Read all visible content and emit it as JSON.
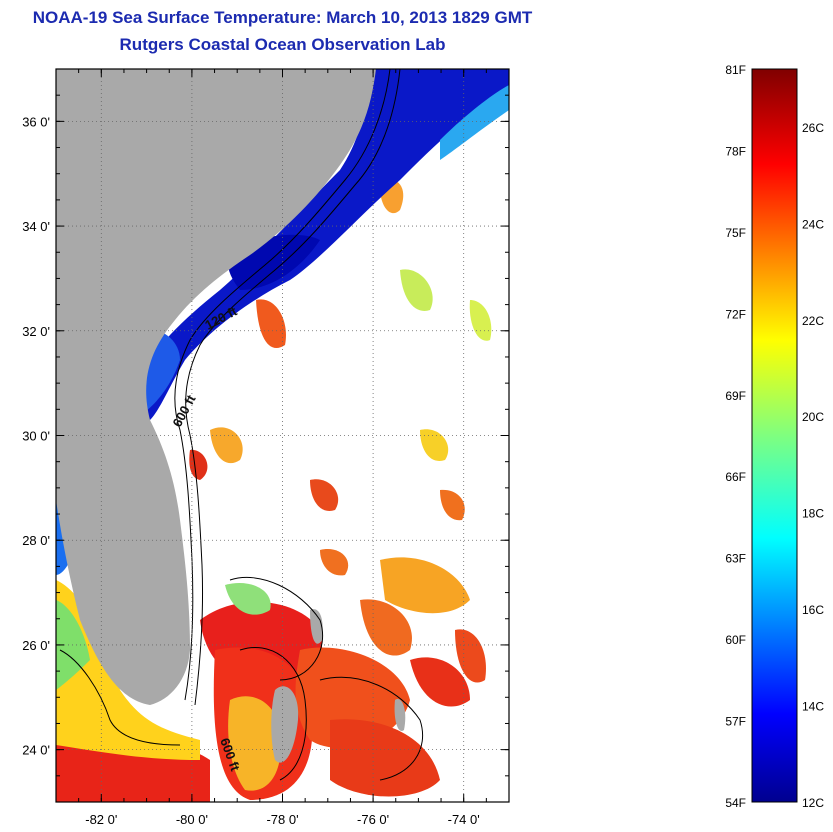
{
  "title_line1": "NOAA-19 Sea Surface Temperature:  March 10, 2013 1829 GMT",
  "title_line2": "Rutgers Coastal Ocean Observation Lab",
  "map": {
    "lon_range": [
      -83,
      -73
    ],
    "lat_range": [
      23,
      37
    ],
    "lat_ticks": [
      {
        "value": 36,
        "label": "36 0'"
      },
      {
        "value": 34,
        "label": "34 0'"
      },
      {
        "value": 32,
        "label": "32 0'"
      },
      {
        "value": 30,
        "label": "30 0'"
      },
      {
        "value": 28,
        "label": "28 0'"
      },
      {
        "value": 26,
        "label": "26 0'"
      },
      {
        "value": 24,
        "label": "24 0'"
      }
    ],
    "lon_ticks": [
      {
        "value": -82,
        "label": "-82 0'"
      },
      {
        "value": -80,
        "label": "-80 0'"
      },
      {
        "value": -78,
        "label": "-78 0'"
      },
      {
        "value": -76,
        "label": "-76 0'"
      },
      {
        "value": -74,
        "label": "-74 0'"
      }
    ],
    "contour_labels": [
      "120 ft",
      "600 ft",
      "600 ft"
    ],
    "colors": {
      "land": "#a9a9a9",
      "ocean_nodata": "#ffffff"
    }
  },
  "colorbar": {
    "f_labels": [
      "81F",
      "78F",
      "75F",
      "72F",
      "69F",
      "66F",
      "63F",
      "60F",
      "57F",
      "54F"
    ],
    "c_labels": [
      "26C",
      "24C",
      "22C",
      "20C",
      "18C",
      "16C",
      "14C",
      "12C"
    ],
    "min_c": 12,
    "max_c": 27.2
  }
}
